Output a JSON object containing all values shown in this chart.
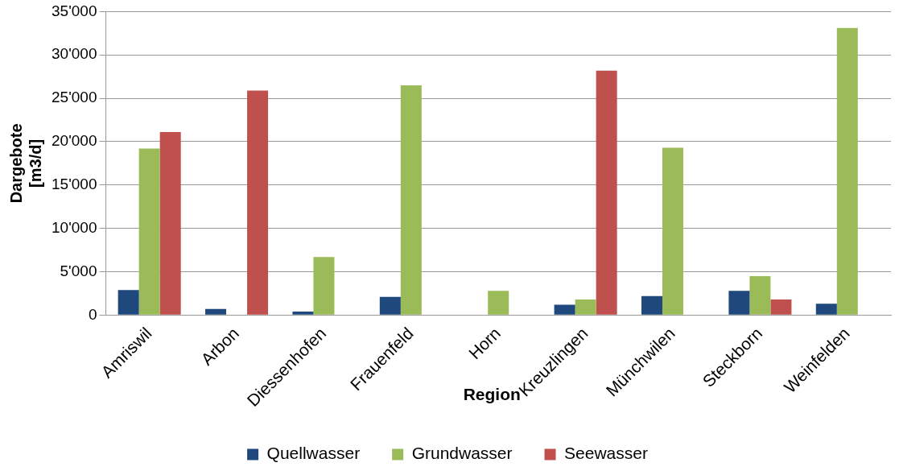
{
  "chart_data": {
    "type": "bar",
    "xlabel": "Region",
    "ylabel": "Dargebote [m3/d]",
    "categories": [
      "Amriswil",
      "Arbon",
      "Diessenhofen",
      "Frauenfeld",
      "Horn",
      "Kreuzlingen",
      "Münchwilen",
      "Steckborn",
      "Weinfelden"
    ],
    "series": [
      {
        "name": "Quellwasser",
        "color": "#1f497d",
        "values": [
          2900,
          700,
          400,
          2100,
          null,
          1200,
          2200,
          2800,
          1300
        ]
      },
      {
        "name": "Grundwasser",
        "color": "#9bbb59",
        "values": [
          19200,
          null,
          6700,
          26500,
          2800,
          1800,
          19300,
          4500,
          33100
        ]
      },
      {
        "name": "Seewasser",
        "color": "#c0504d",
        "values": [
          21100,
          25900,
          null,
          null,
          null,
          28200,
          null,
          1800,
          null
        ]
      }
    ],
    "ylim": [
      0,
      35000
    ],
    "yticks": [
      {
        "value": 0,
        "label": "0"
      },
      {
        "value": 5000,
        "label": "5'000"
      },
      {
        "value": 10000,
        "label": "10'000"
      },
      {
        "value": 15000,
        "label": "15'000"
      },
      {
        "value": 20000,
        "label": "20'000"
      },
      {
        "value": 25000,
        "label": "25'000"
      },
      {
        "value": 30000,
        "label": "30'000"
      },
      {
        "value": 35000,
        "label": "35'000"
      }
    ],
    "grid": "y",
    "legend": "bottom"
  }
}
